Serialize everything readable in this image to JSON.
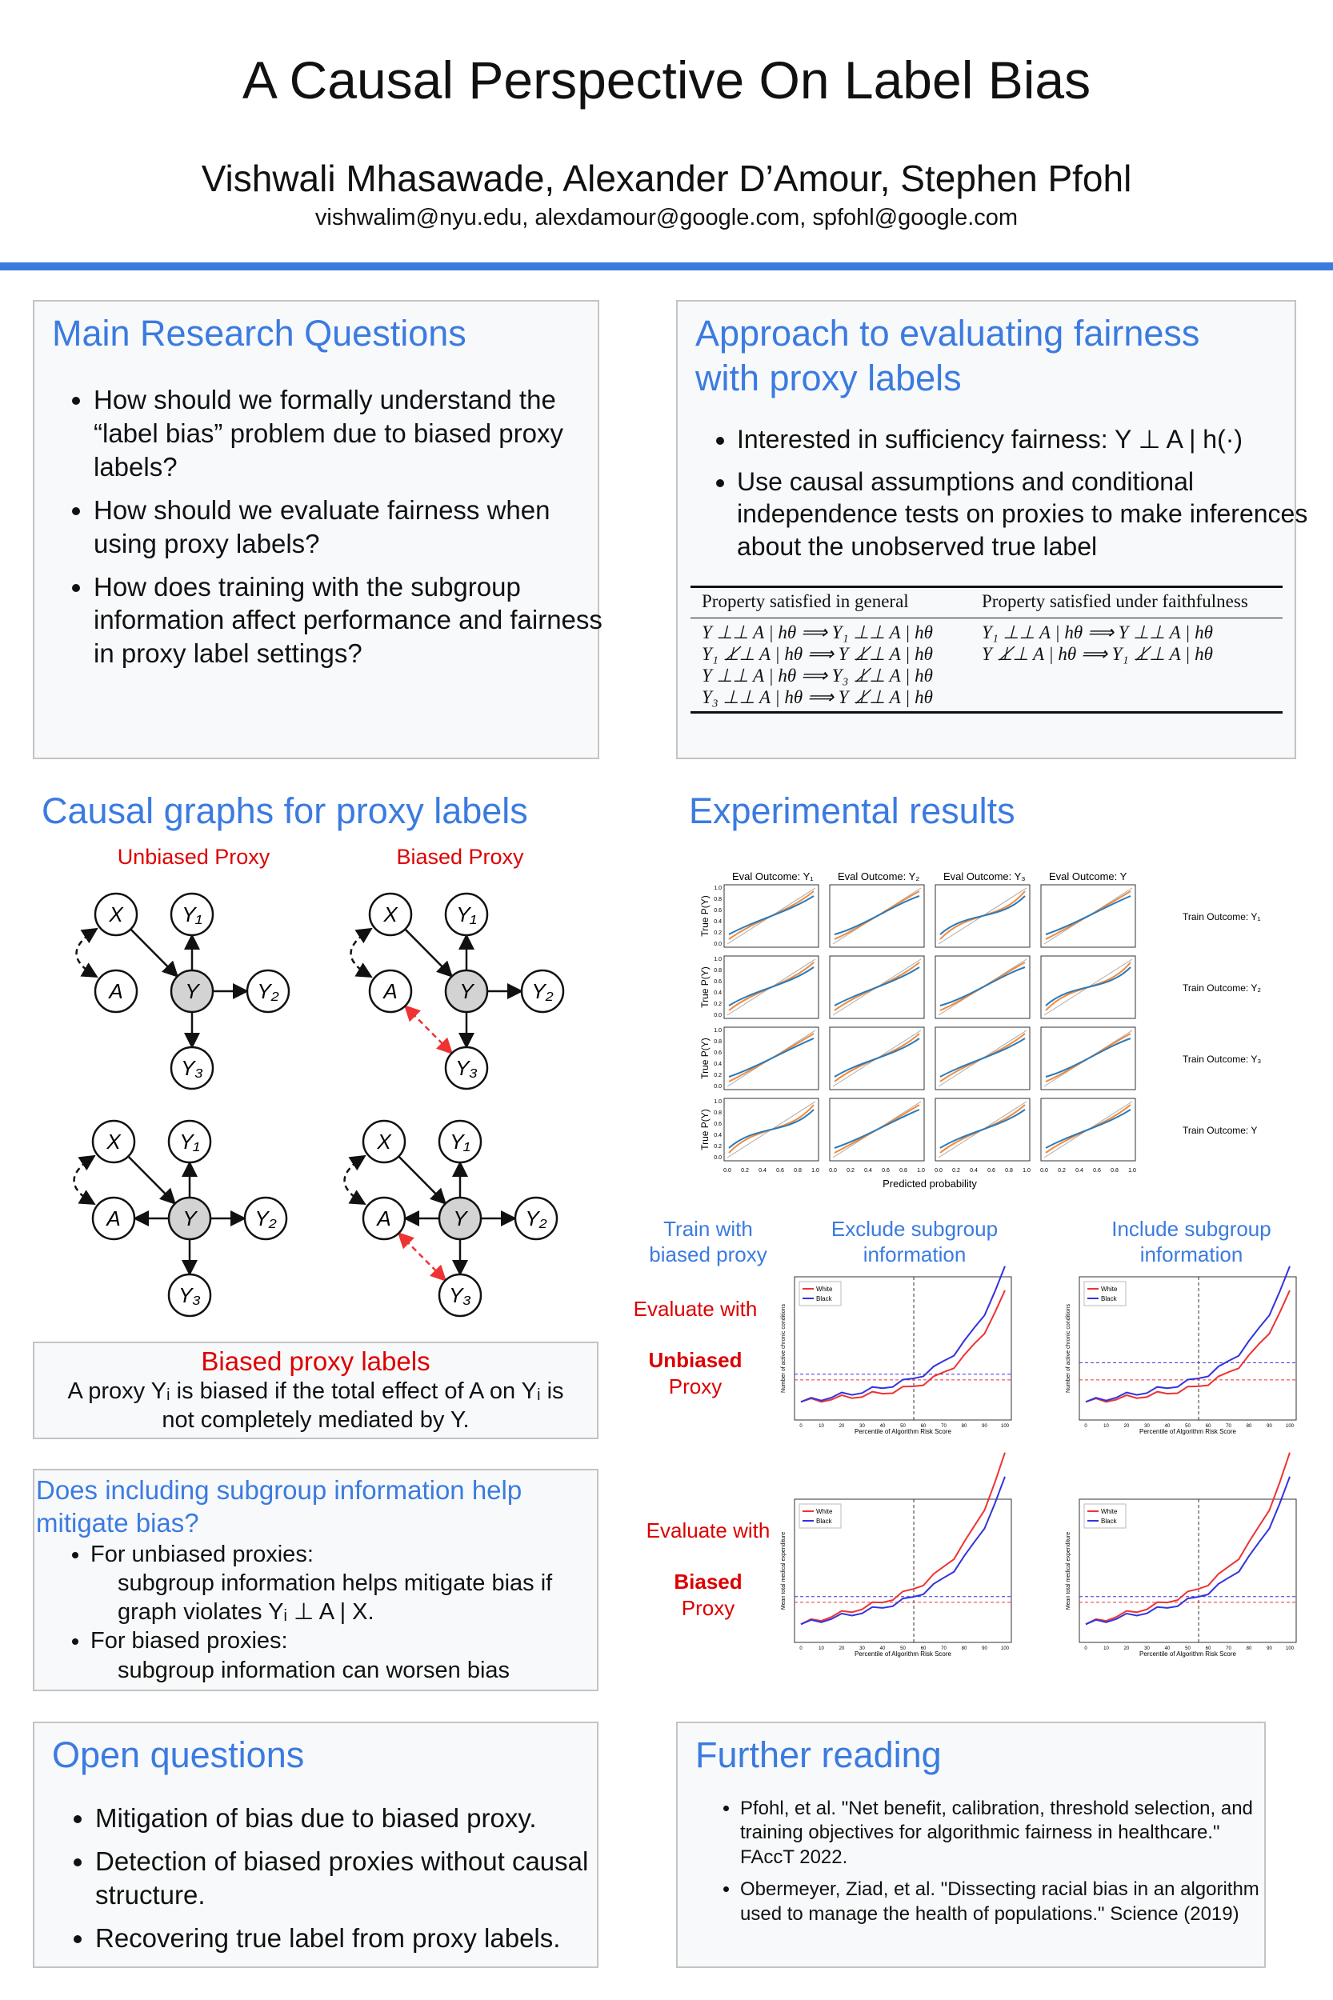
{
  "header": {
    "title": "A Causal Perspective On Label Bias",
    "authors": "Vishwali Mhasawade, Alexander D’Amour, Stephen Pfohl",
    "emails": "vishwalim@nyu.edu, alexdamour@google.com, spfohl@google.com"
  },
  "research_questions": {
    "title": "Main Research Questions",
    "items": [
      "How should we formally understand the “label bias” problem due to biased proxy labels?",
      "How should we evaluate fairness when using proxy labels?",
      "How does training with the subgroup information affect performance and fairness in proxy label settings?"
    ]
  },
  "approach": {
    "title": "Approach to evaluating fairness with proxy labels",
    "items": [
      "Interested in sufficiency fairness: Y ⊥ A | h(·)",
      "Use causal assumptions and conditional independence tests on proxies to make inferences about the unobserved true label"
    ],
    "table": {
      "headers": [
        "Property satisfied in general",
        "Property satisfied under faithfulness"
      ],
      "columns": [
        [
          "Y ⊥⊥ A | hθ ⟹ Y₁ ⊥⊥ A | hθ",
          "Y₁ ⊥̸⊥ A | hθ ⟹ Y ⊥̸⊥ A | hθ",
          "Y ⊥⊥ A | hθ ⟹ Y₃ ⊥̸⊥ A | hθ",
          "Y₃ ⊥⊥ A | hθ ⟹ Y ⊥̸⊥ A | hθ"
        ],
        [
          "Y₁ ⊥⊥ A | hθ ⟹ Y ⊥⊥ A | hθ",
          "Y ⊥̸⊥ A | hθ ⟹ Y₁ ⊥̸⊥ A | hθ"
        ]
      ]
    }
  },
  "causal_graphs": {
    "title": "Causal graphs for proxy labels",
    "labels": [
      "Unbiased Proxy",
      "Biased Proxy"
    ],
    "nodes": [
      "X",
      "Y₁",
      "A",
      "Y",
      "Y₂",
      "Y₃"
    ]
  },
  "biased_proxy": {
    "title": "Biased proxy labels",
    "text": "A proxy Yᵢ is biased if the total effect of A on Yᵢ is not completely mediated by Y."
  },
  "subgroup": {
    "title": "Does including subgroup information help mitigate bias?",
    "items": [
      {
        "text": "For unbiased proxies:",
        "detail": "subgroup information helps mitigate bias if graph violates Yᵢ ⊥ A | X."
      },
      {
        "text": "For biased proxies:",
        "detail": "subgroup information can worsen bias"
      }
    ]
  },
  "results": {
    "title": "Experimental results",
    "grid": {
      "columns": [
        "Eval Outcome: Y₁",
        "Eval Outcome: Y₂",
        "Eval Outcome: Y₃",
        "Eval Outcome: Y"
      ],
      "rows": [
        "Train Outcome: Y₁",
        "Train Outcome: Y₂",
        "Train Outcome: Y₃",
        "Train Outcome: Y"
      ],
      "ylabel": "True P(Y)",
      "xlabel": "Predicted probability",
      "ticks": [
        "0.0",
        "0.2",
        "0.4",
        "0.6",
        "0.8",
        "1.0"
      ]
    },
    "comparison": {
      "columns": [
        "Train with biased proxy",
        "Exclude subgroup information",
        "Include subgroup information"
      ],
      "rows": [
        {
          "prefix": "Evaluate with",
          "emph": "Unbiased",
          "suffix": "Proxy",
          "ylabel": "Number of active chronic conditions"
        },
        {
          "prefix": "Evaluate with",
          "emph": "Biased",
          "suffix": "Proxy",
          "ylabel": "Mean total medical expenditure"
        }
      ],
      "legend": [
        "White",
        "Black"
      ],
      "xlabel": "Percentile of Algorithm Risk Score",
      "xticks": [
        "0",
        "10",
        "20",
        "30",
        "40",
        "50",
        "60",
        "70",
        "80",
        "90",
        "100"
      ]
    }
  },
  "open_questions": {
    "title": "Open questions",
    "items": [
      "Mitigation of bias due to biased proxy.",
      "Detection of biased proxies without causal structure.",
      "Recovering true label from proxy labels."
    ]
  },
  "further_reading": {
    "title": "Further reading",
    "items": [
      "Pfohl, et al. \"Net benefit, calibration, threshold selection, and training objectives for algorithmic fairness in healthcare.\" FAccT 2022.",
      "Obermeyer, Ziad, et al. \"Dissecting racial bias in an algorithm used to manage the health of populations.\" Science (2019)"
    ]
  }
}
